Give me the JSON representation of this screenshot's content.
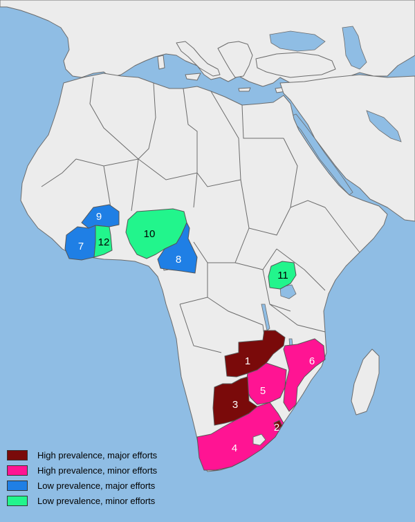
{
  "colors": {
    "sea": "#8fbde4",
    "land": "#ececec",
    "high_major": "#7a0a0a",
    "high_minor": "#ff1493",
    "low_major": "#1f7fe5",
    "low_minor": "#22f58c"
  },
  "regions": [
    {
      "id": "1",
      "label": "1",
      "category": "high_major"
    },
    {
      "id": "2",
      "label": "2",
      "category": "high_major"
    },
    {
      "id": "3",
      "label": "3",
      "category": "high_major"
    },
    {
      "id": "4",
      "label": "4",
      "category": "high_minor"
    },
    {
      "id": "5",
      "label": "5",
      "category": "high_minor"
    },
    {
      "id": "6",
      "label": "6",
      "category": "high_minor"
    },
    {
      "id": "7",
      "label": "7",
      "category": "low_major"
    },
    {
      "id": "8",
      "label": "8",
      "category": "low_major"
    },
    {
      "id": "9",
      "label": "9",
      "category": "low_major"
    },
    {
      "id": "10",
      "label": "10",
      "category": "low_minor"
    },
    {
      "id": "11",
      "label": "11",
      "category": "low_minor"
    },
    {
      "id": "12",
      "label": "12",
      "category": "low_minor"
    }
  ],
  "legend": [
    {
      "label": "High prevalence, major efforts",
      "category": "high_major"
    },
    {
      "label": "High prevalence, minor efforts",
      "category": "high_minor"
    },
    {
      "label": "Low prevalence, major efforts",
      "category": "low_major"
    },
    {
      "label": "Low prevalence, minor efforts",
      "category": "low_minor"
    }
  ]
}
